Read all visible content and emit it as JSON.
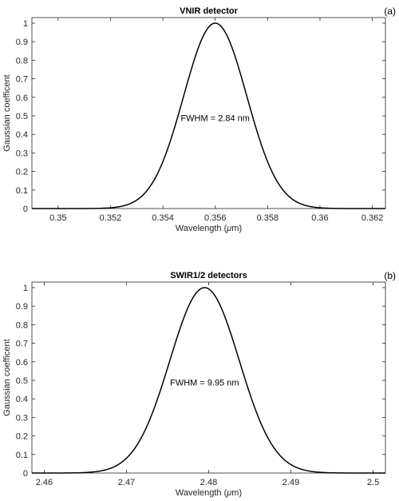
{
  "chart_data": [
    {
      "type": "line",
      "panel_label": "(a)",
      "title": "VNIR detector",
      "xlabel_prefix": "Wavelength (",
      "xlabel_unit": "μ",
      "xlabel_suffix": "m)",
      "ylabel": "Gaussian  coefficent",
      "xlim": [
        0.349,
        0.3625
      ],
      "ylim": [
        0,
        1.03
      ],
      "xticks": [
        0.35,
        0.352,
        0.354,
        0.356,
        0.358,
        0.36,
        0.362
      ],
      "xtick_labels": [
        "0.35",
        "0.352",
        "0.354",
        "0.356",
        "0.358",
        "0.36",
        "0.362"
      ],
      "yticks": [
        0,
        0.1,
        0.2,
        0.3,
        0.4,
        0.5,
        0.6,
        0.7,
        0.8,
        0.9,
        1
      ],
      "ytick_labels": [
        "0",
        "0.1",
        "0.2",
        "0.3",
        "0.4",
        "0.5",
        "0.6",
        "0.7",
        "0.8",
        "0.9",
        "1"
      ],
      "grid": false,
      "annotation": "FWHM = 2.84 nm",
      "annotation_pos": [
        0.356,
        0.49
      ],
      "series": [
        {
          "center": 0.356,
          "fwhm": 0.00284,
          "amplitude": 1,
          "color": "#000000"
        }
      ]
    },
    {
      "type": "line",
      "panel_label": "(b)",
      "title": "SWIR1/2 detectors",
      "xlabel_prefix": "Wavelength (",
      "xlabel_unit": "μ",
      "xlabel_suffix": "m)",
      "ylabel": "Gaussian  coefficent",
      "xlim": [
        2.4585,
        2.5015
      ],
      "ylim": [
        0,
        1.03
      ],
      "xticks": [
        2.46,
        2.47,
        2.48,
        2.49,
        2.5
      ],
      "xtick_labels": [
        "2.46",
        "2.47",
        "2.48",
        "2.49",
        "2.5"
      ],
      "yticks": [
        0,
        0.1,
        0.2,
        0.3,
        0.4,
        0.5,
        0.6,
        0.7,
        0.8,
        0.9,
        1
      ],
      "ytick_labels": [
        "0",
        "0.1",
        "0.2",
        "0.3",
        "0.4",
        "0.5",
        "0.6",
        "0.7",
        "0.8",
        "0.9",
        "1"
      ],
      "grid": false,
      "annotation": "FWHM = 9.95 nm",
      "annotation_pos": [
        2.4795,
        0.49
      ],
      "series": [
        {
          "center": 2.4795,
          "fwhm": 0.00995,
          "amplitude": 1,
          "color": "#000000"
        }
      ]
    }
  ]
}
